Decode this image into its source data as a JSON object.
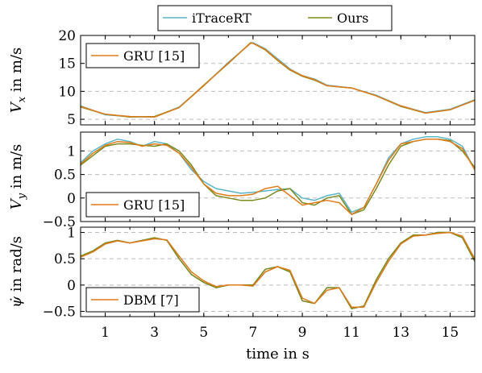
{
  "colors": {
    "itrace": "#5ab4c8",
    "ours": "#7d8a1c",
    "baseline": "#e07b1a",
    "grid": "#bdbdbd"
  },
  "legend": [
    {
      "name": "iTraceRT",
      "color": "#5ab4c8"
    },
    {
      "name": "Ours",
      "color": "#7d8a1c"
    }
  ],
  "chart_data": [
    {
      "type": "line",
      "ylabel": "V_x in m/s",
      "ylabel_var": "V",
      "ylabel_sub": "x",
      "ylabel_unit": " in m/s",
      "ylim": [
        4,
        20
      ],
      "yticks": [
        5,
        10,
        15,
        20
      ],
      "xlim": [
        0,
        16
      ],
      "inset_legend": {
        "name": "GRU [15]",
        "position": "top-left"
      },
      "x": [
        0,
        1,
        2,
        3,
        4,
        5,
        6,
        6.9,
        7,
        7.5,
        8,
        8.5,
        9,
        9.5,
        10,
        11,
        12,
        13,
        14,
        15,
        16
      ],
      "series": [
        {
          "name": "iTraceRT",
          "values": [
            7.4,
            5.8,
            5.5,
            5.4,
            7.2,
            11.0,
            15.2,
            18.6,
            18.7,
            17.6,
            15.8,
            14.0,
            12.8,
            12.2,
            11.1,
            10.6,
            9.3,
            7.4,
            6.2,
            6.8,
            8.5
          ]
        },
        {
          "name": "Ours",
          "values": [
            7.2,
            5.9,
            5.4,
            5.5,
            7.1,
            11.1,
            15.0,
            18.7,
            18.6,
            17.4,
            15.5,
            13.8,
            12.7,
            12.0,
            11.0,
            10.6,
            9.2,
            7.3,
            6.1,
            6.7,
            8.4
          ]
        },
        {
          "name": "GRU [15]",
          "values": [
            7.3,
            5.9,
            5.5,
            5.4,
            7.1,
            11.0,
            15.1,
            18.6,
            18.6,
            17.5,
            15.6,
            13.9,
            12.8,
            12.1,
            11.0,
            10.6,
            9.2,
            7.4,
            6.1,
            6.7,
            8.4
          ]
        }
      ]
    },
    {
      "type": "line",
      "ylabel": "V_y in m/s",
      "ylabel_var": "V",
      "ylabel_sub": "y",
      "ylabel_unit": " in m/s",
      "ylim": [
        -0.5,
        1.4
      ],
      "yticks": [
        -0.5,
        0,
        0.5,
        1
      ],
      "xlim": [
        0,
        16
      ],
      "inset_legend": {
        "name": "GRU [15]",
        "position": "bottom-left"
      },
      "x": [
        0,
        0.5,
        1,
        1.5,
        2,
        2.5,
        3,
        3.5,
        4,
        4.5,
        5,
        5.5,
        6,
        6.5,
        7,
        7.5,
        8,
        8.5,
        9,
        9.5,
        10,
        10.5,
        11,
        11.5,
        12,
        12.5,
        13,
        13.5,
        14,
        14.5,
        15,
        15.5,
        16
      ],
      "series": [
        {
          "name": "iTraceRT",
          "values": [
            0.75,
            1.0,
            1.15,
            1.25,
            1.2,
            1.1,
            1.2,
            1.15,
            0.95,
            0.6,
            0.35,
            0.2,
            0.15,
            0.1,
            0.12,
            0.15,
            0.18,
            0.2,
            0.0,
            -0.05,
            0.05,
            0.1,
            -0.3,
            -0.2,
            0.3,
            0.85,
            1.15,
            1.25,
            1.3,
            1.3,
            1.25,
            1.1,
            0.6
          ]
        },
        {
          "name": "Ours",
          "values": [
            0.7,
            0.9,
            1.1,
            1.15,
            1.15,
            1.12,
            1.1,
            1.15,
            1.0,
            0.7,
            0.3,
            0.05,
            0.0,
            -0.05,
            -0.05,
            0.0,
            0.15,
            0.2,
            -0.1,
            -0.15,
            0.0,
            0.05,
            -0.35,
            -0.25,
            0.2,
            0.7,
            1.1,
            1.2,
            1.25,
            1.25,
            1.22,
            1.0,
            0.65
          ]
        },
        {
          "name": "GRU [15]",
          "values": [
            0.72,
            0.95,
            1.12,
            1.2,
            1.18,
            1.1,
            1.15,
            1.12,
            0.95,
            0.65,
            0.3,
            0.1,
            0.05,
            0.05,
            0.08,
            0.2,
            0.25,
            0.05,
            -0.15,
            -0.1,
            -0.05,
            -0.1,
            -0.35,
            -0.2,
            0.3,
            0.8,
            1.15,
            1.2,
            1.25,
            1.25,
            1.2,
            1.05,
            0.6
          ]
        }
      ]
    },
    {
      "type": "line",
      "ylabel": "ψ̇ in rad/s",
      "ylabel_var": "ψ̇",
      "ylabel_sub": "",
      "ylabel_unit": " in rad/s",
      "ylim": [
        -0.6,
        1.1
      ],
      "yticks": [
        -0.5,
        0,
        0.5,
        1
      ],
      "xlim": [
        0,
        16
      ],
      "inset_legend": {
        "name": "DBM [7]",
        "position": "bottom-left"
      },
      "x": [
        0,
        0.5,
        1,
        1.5,
        2,
        2.5,
        3,
        3.5,
        4,
        4.5,
        5,
        5.5,
        6,
        6.5,
        7,
        7.5,
        8,
        8.5,
        9,
        9.5,
        10,
        10.5,
        11,
        11.5,
        12,
        12.5,
        13,
        13.5,
        14,
        14.5,
        15,
        15.5,
        16
      ],
      "series": [
        {
          "name": "iTraceRT",
          "values": [
            0.55,
            0.65,
            0.8,
            0.85,
            0.8,
            0.85,
            0.9,
            0.85,
            0.5,
            0.2,
            0.05,
            -0.05,
            0.0,
            0.0,
            0.0,
            0.3,
            0.35,
            0.25,
            -0.3,
            -0.35,
            -0.05,
            -0.05,
            -0.45,
            -0.4,
            0.1,
            0.5,
            0.8,
            0.95,
            0.95,
            1.0,
            1.0,
            0.9,
            0.45
          ]
        },
        {
          "name": "Ours",
          "values": [
            0.55,
            0.65,
            0.8,
            0.85,
            0.8,
            0.85,
            0.9,
            0.85,
            0.5,
            0.2,
            0.05,
            -0.05,
            0.0,
            0.0,
            0.0,
            0.3,
            0.35,
            0.25,
            -0.3,
            -0.35,
            -0.05,
            -0.05,
            -0.45,
            -0.4,
            0.1,
            0.5,
            0.8,
            0.95,
            0.95,
            1.0,
            1.0,
            0.9,
            0.45
          ]
        },
        {
          "name": "DBM [7]",
          "values": [
            0.53,
            0.63,
            0.78,
            0.84,
            0.8,
            0.84,
            0.88,
            0.86,
            0.55,
            0.25,
            0.08,
            -0.03,
            0.0,
            0.0,
            -0.02,
            0.25,
            0.35,
            0.28,
            -0.25,
            -0.35,
            -0.1,
            -0.05,
            -0.42,
            -0.42,
            0.05,
            0.45,
            0.78,
            0.93,
            0.95,
            0.98,
            1.0,
            0.93,
            0.5
          ]
        }
      ]
    }
  ],
  "xaxis": {
    "label": "time in s",
    "ticks": [
      1,
      3,
      5,
      7,
      9,
      11,
      13,
      15
    ],
    "minor_ticks": [
      0,
      1,
      2,
      3,
      4,
      5,
      6,
      7,
      8,
      9,
      10,
      11,
      12,
      13,
      14,
      15,
      16
    ]
  }
}
